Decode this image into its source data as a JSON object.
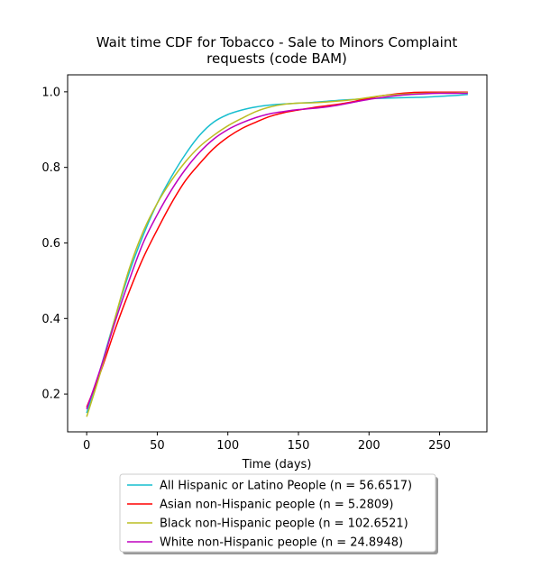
{
  "chart_data": {
    "type": "line",
    "title_lines": [
      "Wait time CDF for Tobacco - Sale to Minors Complaint",
      "requests (code BAM)"
    ],
    "xlabel": "Time (days)",
    "ylabel": "",
    "xlim": [
      -13.5,
      283.5
    ],
    "ylim": [
      0.1,
      1.045
    ],
    "xticks": [
      0,
      50,
      100,
      150,
      200,
      250
    ],
    "yticks": [
      0.2,
      0.4,
      0.6,
      0.8,
      1.0
    ],
    "xtick_labels": [
      "0",
      "50",
      "100",
      "150",
      "200",
      "250"
    ],
    "ytick_labels": [
      "0.2",
      "0.4",
      "0.6",
      "0.8",
      "1.0"
    ],
    "grid": false,
    "legend_position": "below",
    "series": [
      {
        "name": "All Hispanic or Latino People (n = 56.6517)",
        "color": "#17becf",
        "x": [
          0,
          10,
          20,
          30,
          40,
          50,
          60,
          70,
          80,
          90,
          100,
          110,
          120,
          130,
          140,
          150,
          160,
          170,
          180,
          190,
          200,
          210,
          220,
          230,
          240,
          250,
          260,
          270
        ],
        "y": [
          0.15,
          0.27,
          0.4,
          0.52,
          0.62,
          0.705,
          0.775,
          0.835,
          0.885,
          0.92,
          0.94,
          0.952,
          0.96,
          0.965,
          0.968,
          0.97,
          0.972,
          0.975,
          0.978,
          0.98,
          0.982,
          0.983,
          0.984,
          0.985,
          0.986,
          0.988,
          0.99,
          0.993
        ]
      },
      {
        "name": "Asian non-Hispanic people (n = 5.2809)",
        "color": "#ff0000",
        "x": [
          0,
          10,
          20,
          30,
          40,
          50,
          60,
          70,
          80,
          90,
          100,
          110,
          120,
          130,
          140,
          150,
          160,
          170,
          180,
          190,
          200,
          210,
          220,
          230,
          240,
          250,
          260,
          270
        ],
        "y": [
          0.165,
          0.26,
          0.37,
          0.47,
          0.56,
          0.635,
          0.705,
          0.765,
          0.81,
          0.85,
          0.88,
          0.903,
          0.92,
          0.935,
          0.945,
          0.952,
          0.958,
          0.963,
          0.968,
          0.975,
          0.983,
          0.99,
          0.995,
          0.998,
          0.999,
          0.999,
          0.999,
          0.999
        ]
      },
      {
        "name": "Black non-Hispanic people (n = 102.6521)",
        "color": "#bcbd22",
        "x": [
          0,
          10,
          20,
          30,
          40,
          50,
          60,
          70,
          80,
          90,
          100,
          110,
          120,
          130,
          140,
          150,
          160,
          170,
          180,
          190,
          200,
          210,
          220,
          230,
          240,
          250,
          260,
          270
        ],
        "y": [
          0.14,
          0.26,
          0.4,
          0.53,
          0.63,
          0.705,
          0.765,
          0.815,
          0.855,
          0.885,
          0.91,
          0.93,
          0.948,
          0.96,
          0.967,
          0.97,
          0.971,
          0.973,
          0.976,
          0.98,
          0.985,
          0.99,
          0.993,
          0.995,
          0.996,
          0.997,
          0.997,
          0.998
        ]
      },
      {
        "name": "White non-Hispanic people (n = 24.8948)",
        "color": "#bf00bf",
        "x": [
          0,
          10,
          20,
          30,
          40,
          50,
          60,
          70,
          80,
          90,
          100,
          110,
          120,
          130,
          140,
          150,
          160,
          170,
          180,
          190,
          200,
          210,
          220,
          230,
          240,
          250,
          260,
          270
        ],
        "y": [
          0.16,
          0.27,
          0.39,
          0.5,
          0.6,
          0.675,
          0.74,
          0.795,
          0.84,
          0.875,
          0.9,
          0.918,
          0.932,
          0.942,
          0.948,
          0.953,
          0.956,
          0.96,
          0.966,
          0.973,
          0.98,
          0.985,
          0.99,
          0.993,
          0.995,
          0.996,
          0.996,
          0.996
        ]
      }
    ]
  }
}
